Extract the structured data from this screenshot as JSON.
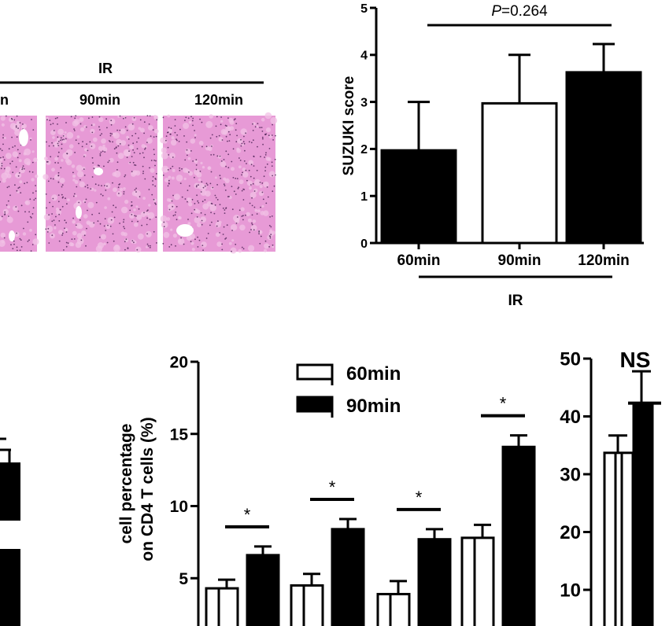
{
  "colors": {
    "ink": "#000000",
    "paper": "#ffffff",
    "he_stain": "#e79ad6",
    "he_pale": "#f1c2e6"
  },
  "panel_top_left": {
    "group_label": "IR",
    "columns": [
      "n",
      "90min",
      "120min"
    ],
    "icon": "he-stained-liver-micrograph"
  },
  "chart_data": [
    {
      "type": "bar",
      "ylabel": "SUZUKI score",
      "ylim": [
        0,
        5
      ],
      "yticks": [
        0,
        1,
        2,
        3,
        4,
        5
      ],
      "categories": [
        "60min",
        "90min",
        "120min"
      ],
      "values": [
        1.97,
        2.97,
        3.63
      ],
      "errors": [
        1.03,
        1.03,
        0.6
      ],
      "fills": [
        "#000000",
        "#ffffff",
        "#000000"
      ],
      "group_label": "IR",
      "annotation": {
        "prefix": "P",
        "text": "=0.264"
      }
    },
    {
      "type": "bar",
      "ylabel": [
        "cell percentage",
        "on CD4 T cells (%)"
      ],
      "ylim": [
        0,
        20
      ],
      "yticks": [
        5,
        10,
        15,
        20
      ],
      "legend": [
        "60min",
        "90min"
      ],
      "series": [
        {
          "name": "60min",
          "values": [
            4.3,
            4.5,
            3.9,
            7.8
          ],
          "errors": [
            0.6,
            0.8,
            0.9,
            0.9
          ]
        },
        {
          "name": "90min",
          "values": [
            6.6,
            8.4,
            7.7,
            14.1
          ],
          "errors": [
            0.6,
            0.7,
            0.7,
            0.8
          ]
        }
      ],
      "significance": [
        "*",
        "*",
        "*",
        "*"
      ]
    },
    {
      "type": "bar",
      "ylim": [
        0,
        50
      ],
      "yticks": [
        10,
        20,
        30,
        40,
        50
      ],
      "values": [
        33.7,
        42.3
      ],
      "errors": [
        3.0,
        5.5
      ],
      "annotation": "NS"
    }
  ]
}
